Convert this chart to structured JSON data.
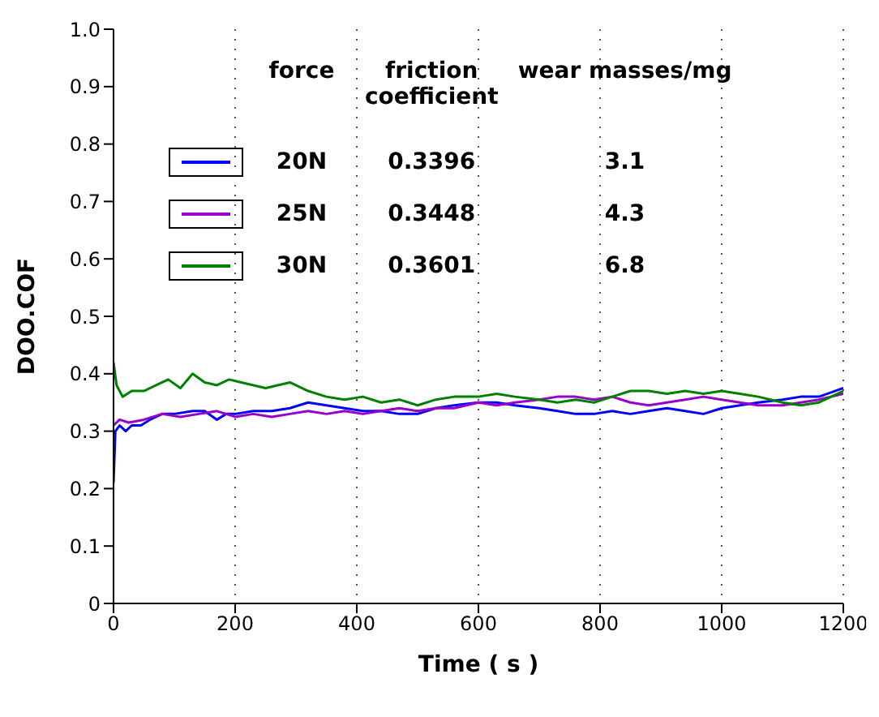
{
  "chart_data": {
    "type": "line",
    "xlabel": "Time ( s )",
    "ylabel": "DOO.COF",
    "xlim": [
      0,
      1200
    ],
    "xticks": [
      0,
      200,
      400,
      600,
      800,
      1000,
      1200
    ],
    "ylim": [
      0,
      1.0
    ],
    "yticks": [
      0,
      0.1,
      0.2,
      0.3,
      0.4,
      0.5,
      0.6,
      0.7,
      0.8,
      0.9,
      {
        "value": 1.0,
        "label": "1.0"
      }
    ],
    "grid": "x",
    "legend": "top",
    "marker": "none",
    "line_style": "solid",
    "annotations": [
      "force",
      "friction coefficient",
      "wear masses/mg",
      "0.3396",
      "3.1",
      "0.3448",
      "4.3",
      "0.3601",
      "6.8"
    ],
    "series": [
      {
        "name": "20N",
        "color": "#0000ff",
        "x": [
          0,
          3,
          10,
          20,
          30,
          45,
          60,
          80,
          100,
          130,
          150,
          170,
          185,
          200,
          230,
          260,
          290,
          320,
          350,
          380,
          410,
          440,
          470,
          500,
          530,
          560,
          600,
          630,
          660,
          700,
          730,
          760,
          790,
          820,
          850,
          880,
          910,
          940,
          970,
          1000,
          1030,
          1060,
          1100,
          1130,
          1160,
          1200
        ],
        "values": [
          0.21,
          0.3,
          0.31,
          0.3,
          0.31,
          0.31,
          0.32,
          0.33,
          0.33,
          0.335,
          0.335,
          0.32,
          0.33,
          0.33,
          0.335,
          0.335,
          0.34,
          0.35,
          0.345,
          0.34,
          0.335,
          0.335,
          0.33,
          0.33,
          0.34,
          0.345,
          0.35,
          0.35,
          0.345,
          0.34,
          0.335,
          0.33,
          0.33,
          0.335,
          0.33,
          0.335,
          0.34,
          0.335,
          0.33,
          0.34,
          0.345,
          0.35,
          0.355,
          0.36,
          0.36,
          0.375
        ]
      },
      {
        "name": "25N",
        "color": "#9900cc",
        "x": [
          0,
          10,
          25,
          50,
          80,
          110,
          140,
          170,
          200,
          230,
          260,
          290,
          320,
          350,
          380,
          410,
          440,
          470,
          500,
          530,
          560,
          600,
          630,
          660,
          700,
          730,
          760,
          790,
          820,
          850,
          880,
          910,
          940,
          970,
          1000,
          1030,
          1060,
          1100,
          1130,
          1160,
          1200
        ],
        "values": [
          0.31,
          0.32,
          0.315,
          0.32,
          0.33,
          0.325,
          0.33,
          0.335,
          0.325,
          0.33,
          0.325,
          0.33,
          0.335,
          0.33,
          0.335,
          0.33,
          0.335,
          0.34,
          0.335,
          0.34,
          0.34,
          0.35,
          0.345,
          0.35,
          0.355,
          0.36,
          0.36,
          0.355,
          0.36,
          0.35,
          0.345,
          0.35,
          0.355,
          0.36,
          0.355,
          0.35,
          0.345,
          0.345,
          0.35,
          0.355,
          0.365
        ]
      },
      {
        "name": "30N",
        "color": "#008000",
        "x": [
          0,
          5,
          15,
          30,
          50,
          70,
          90,
          110,
          130,
          150,
          170,
          190,
          210,
          230,
          250,
          270,
          290,
          320,
          350,
          380,
          410,
          440,
          470,
          500,
          530,
          560,
          600,
          630,
          660,
          700,
          730,
          760,
          790,
          820,
          850,
          880,
          910,
          940,
          970,
          1000,
          1030,
          1060,
          1100,
          1130,
          1160,
          1200
        ],
        "values": [
          0.42,
          0.38,
          0.36,
          0.37,
          0.37,
          0.38,
          0.39,
          0.375,
          0.4,
          0.385,
          0.38,
          0.39,
          0.385,
          0.38,
          0.375,
          0.38,
          0.385,
          0.37,
          0.36,
          0.355,
          0.36,
          0.35,
          0.355,
          0.345,
          0.355,
          0.36,
          0.36,
          0.365,
          0.36,
          0.355,
          0.35,
          0.355,
          0.35,
          0.36,
          0.37,
          0.37,
          0.365,
          0.37,
          0.365,
          0.37,
          0.365,
          0.36,
          0.35,
          0.345,
          0.35,
          0.37
        ]
      }
    ]
  }
}
